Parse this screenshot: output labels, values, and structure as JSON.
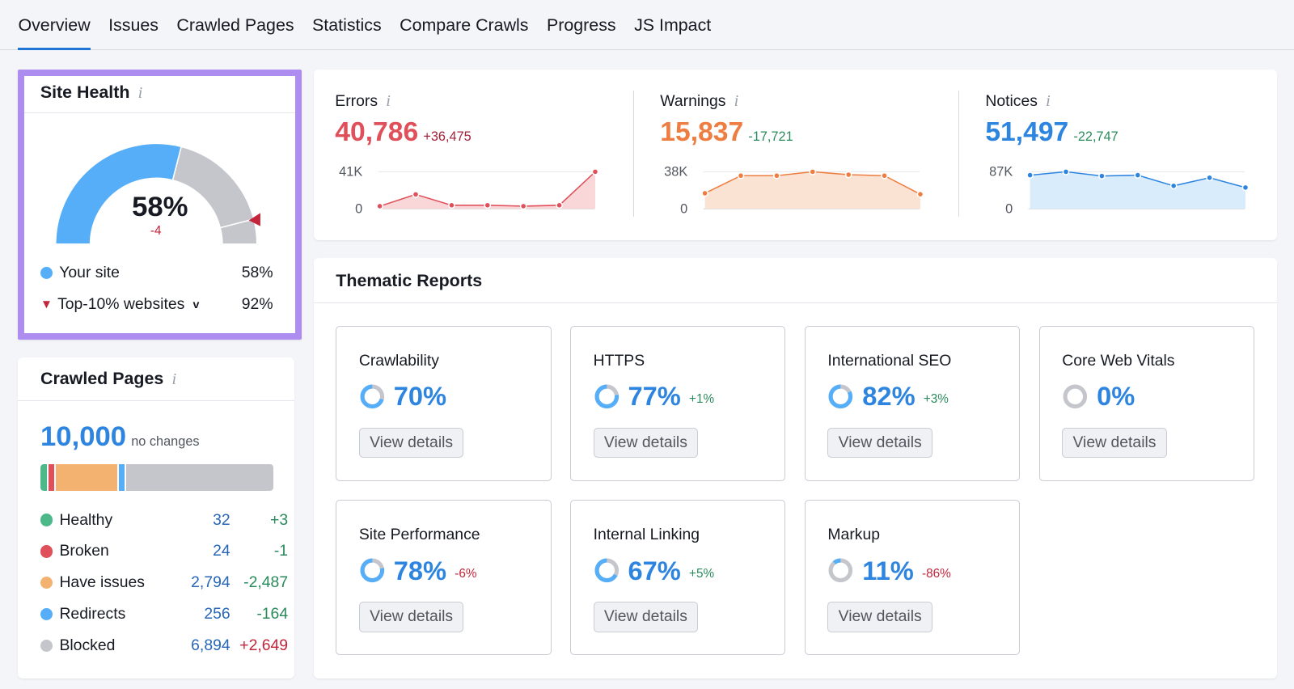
{
  "tabs": [
    {
      "label": "Overview",
      "active": true
    },
    {
      "label": "Issues"
    },
    {
      "label": "Crawled Pages"
    },
    {
      "label": "Statistics"
    },
    {
      "label": "Compare Crawls"
    },
    {
      "label": "Progress"
    },
    {
      "label": "JS Impact"
    }
  ],
  "site_health": {
    "title": "Site Health",
    "percent": "58%",
    "value": 58,
    "delta": "-4",
    "top10_value": 92,
    "legend": [
      {
        "label": "Your site",
        "value": "58%",
        "color": "#55aef7"
      },
      {
        "label": "Top-10% websites",
        "value": "92%",
        "color": "#c3253a"
      }
    ]
  },
  "crawled_pages": {
    "title": "Crawled Pages",
    "total": "10,000",
    "total_note": "no changes",
    "rows": [
      {
        "label": "Healthy",
        "count": "32",
        "delta": "+3",
        "color": "#4db98a",
        "delta_color": "#2a8a5b"
      },
      {
        "label": "Broken",
        "count": "24",
        "delta": "-1",
        "color": "#e0505a",
        "delta_color": "#2a8a5b"
      },
      {
        "label": "Have issues",
        "count": "2,794",
        "delta": "-2,487",
        "color": "#f3b26f",
        "delta_color": "#2a8a5b"
      },
      {
        "label": "Redirects",
        "count": "256",
        "delta": "-164",
        "color": "#55aef7",
        "delta_color": "#2a8a5b"
      },
      {
        "label": "Blocked",
        "count": "6,894",
        "delta": "+2,649",
        "color": "#c4c6cc",
        "delta_color": "#c3253a"
      }
    ]
  },
  "metrics": [
    {
      "label": "Errors",
      "value": "40,786",
      "delta": "+36,475",
      "color": "#e0505a",
      "delta_color": "#a3233a",
      "fill": "#f9d6d8",
      "ymax_label": "41K",
      "ymin_label": "0",
      "ymax": 41000,
      "points": [
        3000,
        16000,
        4000,
        4000,
        3000,
        4000,
        41000
      ]
    },
    {
      "label": "Warnings",
      "value": "15,837",
      "delta": "-17,721",
      "color": "#ee7d41",
      "delta_color": "#2a8a5b",
      "fill": "#fbe3d3",
      "ymax_label": "38K",
      "ymin_label": "0",
      "ymax": 38000,
      "points": [
        16000,
        34000,
        34000,
        38000,
        35000,
        34000,
        15000
      ]
    },
    {
      "label": "Notices",
      "value": "51,497",
      "delta": "-22,747",
      "color": "#2e85e0",
      "delta_color": "#2a8a5b",
      "fill": "#d9ecfb",
      "ymax_label": "87K",
      "ymin_label": "0",
      "ymax": 87000,
      "points": [
        79000,
        87000,
        77000,
        79000,
        54000,
        73000,
        50000
      ]
    }
  ],
  "thematic": {
    "title": "Thematic Reports",
    "button_label": "View details",
    "reports": [
      {
        "name": "Crawlability",
        "percent": "70%",
        "value": 70,
        "delta": ""
      },
      {
        "name": "HTTPS",
        "percent": "77%",
        "value": 77,
        "delta": "+1%",
        "delta_color": "#2a8a5b"
      },
      {
        "name": "International SEO",
        "percent": "82%",
        "value": 82,
        "delta": "+3%",
        "delta_color": "#2a8a5b"
      },
      {
        "name": "Core Web Vitals",
        "percent": "0%",
        "value": 0,
        "delta": ""
      },
      {
        "name": "Site Performance",
        "percent": "78%",
        "value": 78,
        "delta": "-6%",
        "delta_color": "#c3253a"
      },
      {
        "name": "Internal Linking",
        "percent": "67%",
        "value": 67,
        "delta": "+5%",
        "delta_color": "#2a8a5b"
      },
      {
        "name": "Markup",
        "percent": "11%",
        "value": 11,
        "delta": "-86%",
        "delta_color": "#c3253a"
      }
    ]
  }
}
